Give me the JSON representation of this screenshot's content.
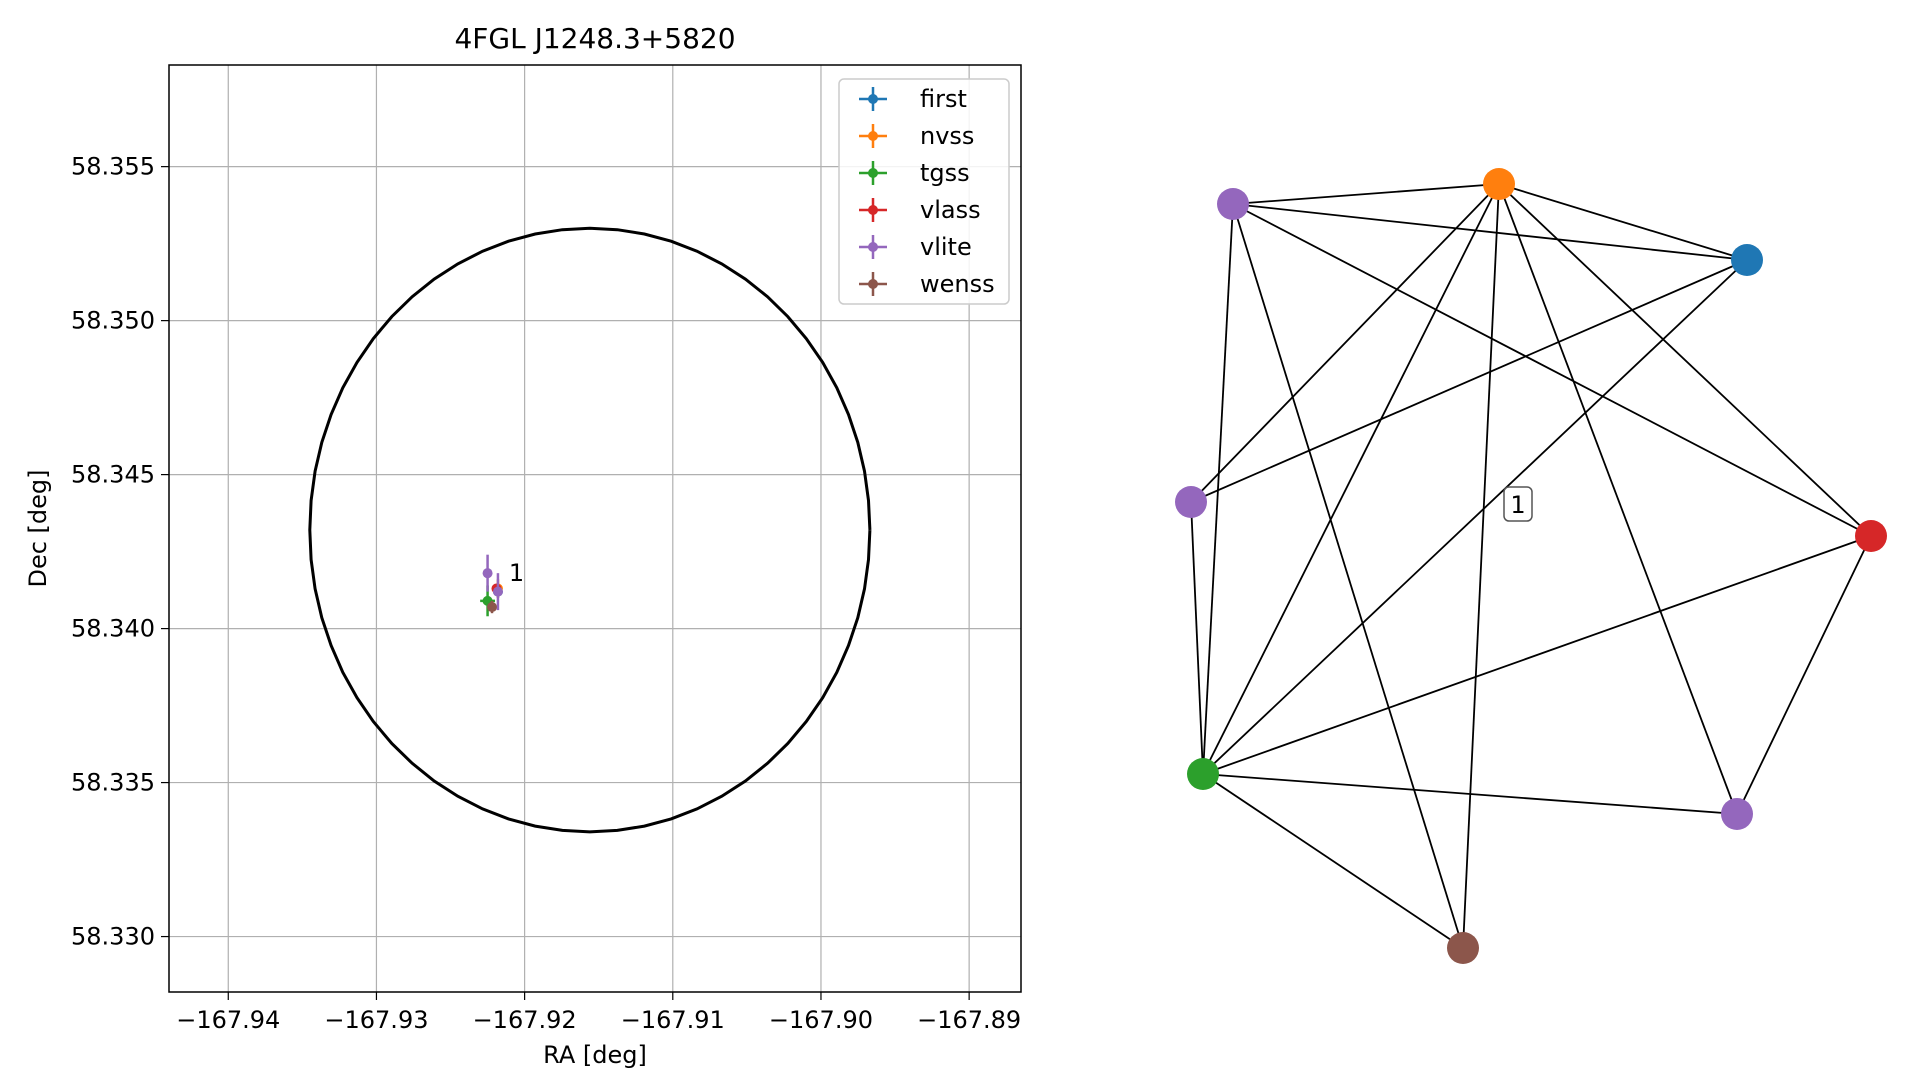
{
  "chart_data": [
    {
      "type": "scatter",
      "title": "4FGL J1248.3+5820",
      "xlabel": "RA [deg]",
      "ylabel": "Dec [deg]",
      "xlim": [
        -167.944,
        -167.8865
      ],
      "ylim": [
        58.3282,
        58.3583
      ],
      "xticks": [
        -167.94,
        -167.93,
        -167.92,
        -167.91,
        -167.9,
        -167.89
      ],
      "xtick_labels": [
        "−167.94",
        "−167.93",
        "−167.92",
        "−167.91",
        "−167.90",
        "−167.89"
      ],
      "yticks": [
        58.33,
        58.335,
        58.34,
        58.345,
        58.35,
        58.355
      ],
      "ytick_labels": [
        "58.330",
        "58.335",
        "58.340",
        "58.345",
        "58.350",
        "58.355"
      ],
      "grid": true,
      "legend_position": "top-right",
      "circle": {
        "center": [
          -167.9156,
          58.3432
        ],
        "radius_ra": 0.0189,
        "radius_dec": 0.0098,
        "color": "#000000"
      },
      "series": [
        {
          "name": "first",
          "color": "#1f77b4",
          "x": [
            -167.9218
          ],
          "y": [
            58.3412
          ],
          "xerr": 0.0002,
          "yerr": 0.0002
        },
        {
          "name": "nvss",
          "color": "#ff7f0e",
          "x": [
            -167.9218
          ],
          "y": [
            58.3413
          ],
          "xerr": 0.0003,
          "yerr": 0.0003
        },
        {
          "name": "tgss",
          "color": "#2ca02c",
          "x": [
            -167.9225
          ],
          "y": [
            58.3409
          ],
          "xerr": 0.0005,
          "yerr": 0.0005
        },
        {
          "name": "vlass",
          "color": "#d62728",
          "x": [
            -167.9219
          ],
          "y": [
            58.3413
          ],
          "xerr": 0.0001,
          "yerr": 0.0001
        },
        {
          "name": "vlite",
          "color": "#9467bd",
          "x": [
            -167.9225,
            -167.9218
          ],
          "y": [
            58.3418,
            58.3412
          ],
          "xerr": 0.0001,
          "yerr": 0.0006
        },
        {
          "name": "wenss",
          "color": "#8c564b",
          "x": [
            -167.9222
          ],
          "y": [
            58.3407
          ],
          "xerr": 0.0002,
          "yerr": 0.0002
        }
      ],
      "annotations": [
        {
          "text": "1",
          "x": -167.9216,
          "y": 58.3418
        }
      ]
    },
    {
      "type": "network",
      "nodes": [
        {
          "id": 0,
          "color": "#9467bd"
        },
        {
          "id": 1,
          "color": "#ff7f0e"
        },
        {
          "id": 2,
          "color": "#1f77b4"
        },
        {
          "id": 3,
          "color": "#9467bd"
        },
        {
          "id": 4,
          "color": "#d62728"
        },
        {
          "id": 5,
          "color": "#2ca02c"
        },
        {
          "id": 6,
          "color": "#9467bd"
        },
        {
          "id": 7,
          "color": "#8c564b"
        }
      ],
      "edges": [
        [
          0,
          1
        ],
        [
          0,
          2
        ],
        [
          0,
          4
        ],
        [
          0,
          5
        ],
        [
          0,
          7
        ],
        [
          1,
          2
        ],
        [
          1,
          3
        ],
        [
          1,
          4
        ],
        [
          1,
          5
        ],
        [
          1,
          6
        ],
        [
          1,
          7
        ],
        [
          2,
          3
        ],
        [
          2,
          5
        ],
        [
          3,
          5
        ],
        [
          4,
          5
        ],
        [
          4,
          6
        ],
        [
          5,
          6
        ],
        [
          5,
          7
        ]
      ],
      "label": "1"
    }
  ]
}
